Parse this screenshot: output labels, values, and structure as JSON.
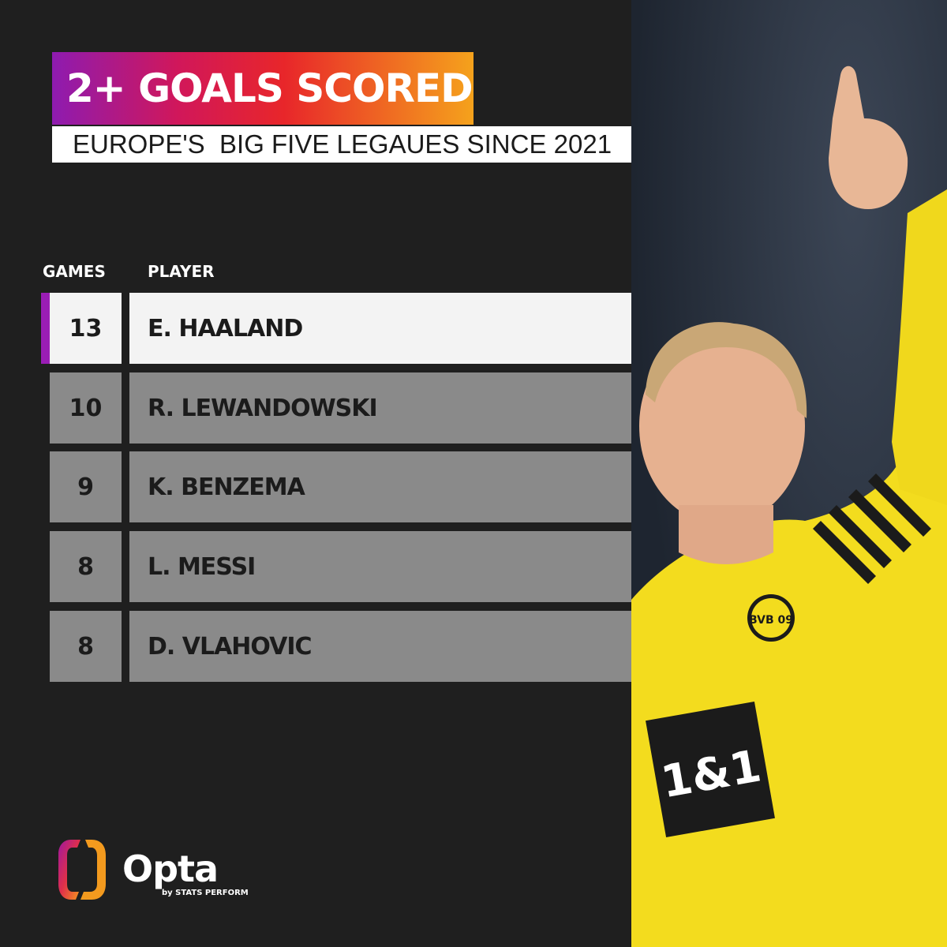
{
  "title": "2+ GOALS SCORED",
  "subtitle": "EUROPE'S  BIG FIVE LEGAUES SINCE 2021",
  "columns": {
    "games": "GAMES",
    "player": "PLAYER"
  },
  "rows": [
    {
      "games": "13",
      "player": "E. HAALAND"
    },
    {
      "games": "10",
      "player": "R. LEWANDOWSKI"
    },
    {
      "games": "9",
      "player": "K. BENZEMA"
    },
    {
      "games": "8",
      "player": "L. MESSI"
    },
    {
      "games": "8",
      "player": "D. VLAHOVIC"
    }
  ],
  "brand": {
    "name": "Opta",
    "tagline": "by STATS PERFORM"
  },
  "photo": {
    "shirt_sponsor": "1&1",
    "crest": "BVB 09"
  },
  "colors": {
    "accent": "#9a1db5",
    "highlight_row": "#f3f3f3",
    "row": "#8a8a8a",
    "background": "#1f1f1f",
    "jersey": "#f5e021"
  }
}
